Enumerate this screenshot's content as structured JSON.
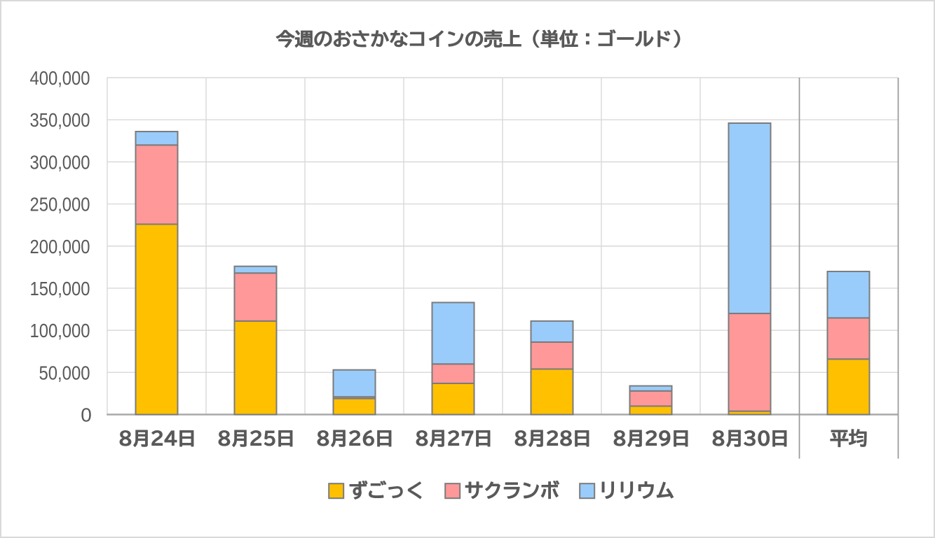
{
  "window": {
    "background": "#FFFFFF",
    "border_color": "#D9D9D9"
  },
  "chart_data": {
    "type": "bar",
    "subtype": "stacked-column",
    "title": "今週のおさかなコインの売上（単位：ゴールド）",
    "categories": [
      "8月24日",
      "8月25日",
      "8月26日",
      "8月27日",
      "8月28日",
      "8月29日",
      "8月30日",
      "平均"
    ],
    "series": [
      {
        "name": "ずごっく",
        "color": "#FFC000",
        "values": [
          226000,
          111000,
          19000,
          37000,
          54000,
          10000,
          4000,
          65857
        ]
      },
      {
        "name": "サクランボ",
        "color": "#FF9999",
        "values": [
          94000,
          57000,
          2000,
          23000,
          32000,
          18000,
          116000,
          48857
        ]
      },
      {
        "name": "リリウム",
        "color": "#99CCFA",
        "values": [
          16000,
          8000,
          32000,
          73000,
          25000,
          6000,
          226000,
          55143
        ]
      }
    ],
    "ylim": [
      0,
      400000
    ],
    "ytick_step": 50000,
    "ytick_labels": [
      "400,000",
      "350,000",
      "300,000",
      "250,000",
      "200,000",
      "150,000",
      "100,000",
      "50,000",
      "0"
    ],
    "xlabel": "",
    "ylabel": "",
    "grid": "horizontal-major",
    "legend_position": "bottom",
    "bar_border_color": "#7B7B7B",
    "gridline_color": "#D9D9D9",
    "axis_line_color": "#A9A9A9",
    "separator_line_color": "#999999",
    "text_color": "#595959"
  }
}
